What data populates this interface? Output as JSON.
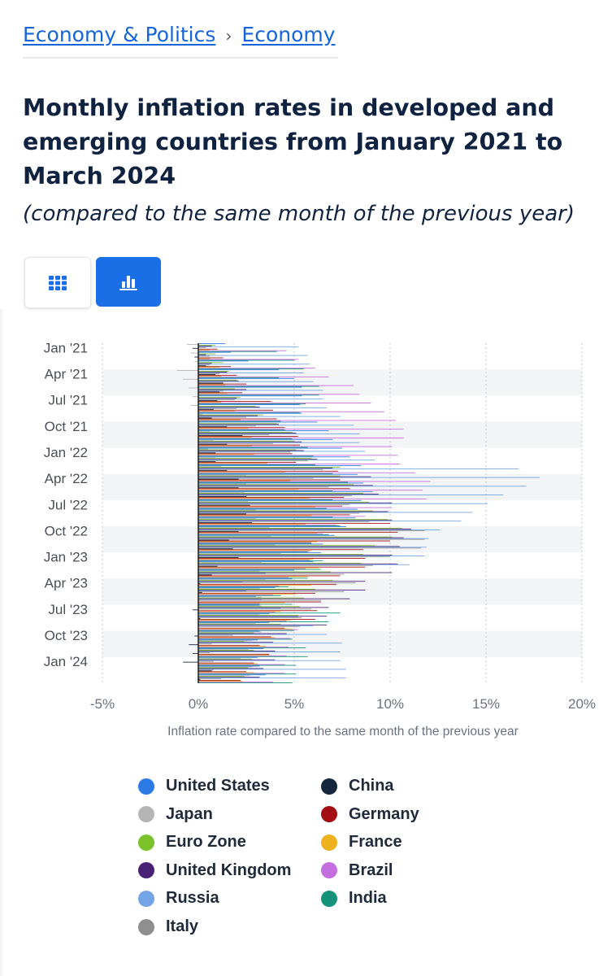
{
  "breadcrumb": {
    "item1": "Economy & Politics",
    "separator": "›",
    "item2": "Economy"
  },
  "title": "Monthly inflation rates in developed and emerging countries from January 2021 to March 2024",
  "subtitle": "(compared to the same month of the previous year)",
  "view_buttons": {
    "table_icon": "grid-icon",
    "chart_icon": "bar-chart-icon",
    "active": "chart"
  },
  "colors": {
    "accent": "#1a6ee6",
    "title": "#0f2240"
  },
  "chart_data": {
    "type": "bar",
    "orientation": "horizontal",
    "xlabel": "Inflation rate compared to the same month of the previous year",
    "xlim": [
      -5,
      20
    ],
    "xticks": [
      "-5%",
      "0%",
      "5%",
      "10%",
      "15%",
      "20%"
    ],
    "xtick_values": [
      -5,
      0,
      5,
      10,
      15,
      20
    ],
    "grid": "vertical dotted",
    "categories": [
      "Jan '21",
      "Feb '21",
      "Mar '21",
      "Apr '21",
      "May '21",
      "Jun '21",
      "Jul '21",
      "Aug '21",
      "Sep '21",
      "Oct '21",
      "Nov '21",
      "Dec '21",
      "Jan '22",
      "Feb '22",
      "Mar '22",
      "Apr '22",
      "May '22",
      "Jun '22",
      "Jul '22",
      "Aug '22",
      "Sep '22",
      "Oct '22",
      "Nov '22",
      "Dec '22",
      "Jan '23",
      "Feb '23",
      "Mar '23",
      "Apr '23",
      "May '23",
      "Jun '23",
      "Jul '23",
      "Aug '23",
      "Sep '23",
      "Oct '23",
      "Nov '23",
      "Dec '23",
      "Jan '24",
      "Feb '24",
      "Mar '24"
    ],
    "category_labels_shown": [
      "Jan '21",
      "Apr '21",
      "Jul '21",
      "Oct '21",
      "Jan '22",
      "Apr '22",
      "Jul '22",
      "Oct '22",
      "Jan '23",
      "Apr '23",
      "Jul '23",
      "Oct '23",
      "Jan '24"
    ],
    "legend_placement": "bottom",
    "series": [
      {
        "name": "United States",
        "color": "#2c7be5",
        "values": [
          1.4,
          1.7,
          2.6,
          4.2,
          5.0,
          5.4,
          5.4,
          5.3,
          5.4,
          6.2,
          6.8,
          7.0,
          7.5,
          7.9,
          8.5,
          8.3,
          8.6,
          9.1,
          8.5,
          8.3,
          8.2,
          7.7,
          7.1,
          6.5,
          6.4,
          6.0,
          5.0,
          4.9,
          4.0,
          3.0,
          3.2,
          3.7,
          3.7,
          3.2,
          3.1,
          3.4,
          3.1,
          3.2,
          3.5
        ]
      },
      {
        "name": "Japan",
        "color": "#b5b5b5",
        "values": [
          -0.6,
          -0.4,
          -0.2,
          -1.1,
          -0.8,
          -0.5,
          -0.3,
          -0.4,
          0.2,
          0.1,
          0.6,
          0.8,
          0.5,
          0.9,
          1.2,
          2.5,
          2.5,
          2.4,
          2.6,
          3.0,
          3.0,
          3.7,
          3.8,
          4.0,
          4.3,
          3.3,
          3.2,
          3.5,
          3.2,
          3.3,
          3.3,
          3.2,
          3.0,
          3.3,
          2.8,
          2.6,
          2.2,
          2.8,
          2.7
        ]
      },
      {
        "name": "Euro Zone",
        "color": "#7cc22b",
        "values": [
          0.9,
          0.9,
          1.3,
          1.6,
          2.0,
          1.9,
          2.2,
          3.0,
          3.4,
          4.1,
          4.9,
          5.0,
          5.1,
          5.9,
          7.4,
          7.4,
          8.1,
          8.6,
          8.9,
          9.1,
          9.9,
          10.6,
          10.1,
          9.2,
          8.6,
          8.5,
          6.9,
          7.0,
          6.1,
          5.5,
          5.3,
          5.2,
          4.3,
          2.9,
          2.4,
          2.9,
          2.8,
          2.6,
          2.4
        ]
      },
      {
        "name": "United Kingdom",
        "color": "#4a2275",
        "values": [
          0.7,
          0.4,
          0.7,
          1.5,
          2.1,
          2.5,
          2.0,
          3.2,
          3.1,
          4.2,
          5.1,
          5.4,
          5.5,
          6.2,
          7.0,
          9.0,
          9.1,
          9.4,
          10.1,
          9.9,
          10.1,
          11.1,
          10.7,
          10.5,
          10.1,
          10.4,
          10.1,
          8.7,
          8.7,
          7.9,
          6.8,
          6.7,
          6.7,
          4.6,
          3.9,
          4.0,
          4.0,
          3.4,
          3.2
        ]
      },
      {
        "name": "Russia",
        "color": "#73a4e6",
        "values": [
          5.2,
          5.7,
          5.8,
          5.5,
          6.0,
          6.5,
          6.5,
          6.7,
          7.4,
          8.1,
          8.4,
          8.4,
          8.7,
          9.2,
          16.7,
          17.8,
          17.1,
          15.9,
          15.1,
          14.3,
          13.7,
          12.6,
          12.0,
          11.9,
          11.8,
          11.0,
          3.5,
          2.3,
          2.5,
          3.3,
          4.3,
          5.2,
          6.0,
          6.7,
          7.5,
          7.4,
          7.4,
          7.7,
          7.7
        ]
      },
      {
        "name": "Italy",
        "color": "#8f8f8f",
        "values": [
          0.4,
          0.6,
          0.6,
          1.1,
          1.3,
          1.3,
          1.9,
          2.0,
          2.5,
          3.0,
          3.7,
          3.9,
          4.8,
          5.7,
          6.5,
          6.0,
          6.8,
          8.0,
          7.9,
          8.4,
          8.9,
          11.8,
          11.8,
          11.6,
          10.0,
          9.1,
          7.6,
          8.2,
          7.6,
          6.4,
          5.9,
          5.4,
          5.3,
          1.8,
          0.7,
          0.6,
          0.8,
          0.8,
          1.2
        ]
      },
      {
        "name": "China",
        "color": "#12273d",
        "values": [
          -0.3,
          -0.2,
          0.4,
          0.9,
          1.3,
          1.1,
          1.0,
          0.8,
          0.7,
          1.5,
          2.3,
          1.5,
          0.9,
          0.9,
          1.5,
          2.1,
          2.1,
          2.5,
          2.7,
          2.5,
          2.8,
          2.1,
          1.6,
          1.8,
          2.1,
          1.0,
          0.7,
          0.1,
          0.2,
          0.0,
          -0.3,
          0.1,
          0.0,
          -0.2,
          -0.5,
          -0.3,
          -0.8,
          0.7,
          0.1
        ]
      },
      {
        "name": "Germany",
        "color": "#a30f12",
        "values": [
          1.0,
          1.3,
          1.7,
          2.0,
          2.5,
          2.3,
          3.8,
          3.9,
          4.1,
          4.5,
          5.2,
          5.3,
          4.9,
          5.1,
          7.3,
          7.4,
          7.9,
          7.6,
          7.5,
          7.9,
          10.0,
          10.4,
          10.0,
          8.6,
          8.7,
          8.7,
          7.4,
          7.2,
          6.1,
          6.4,
          6.2,
          6.1,
          4.5,
          3.8,
          3.2,
          3.7,
          2.9,
          2.5,
          2.2
        ]
      },
      {
        "name": "France",
        "color": "#efb11e",
        "values": [
          0.6,
          0.6,
          1.1,
          1.2,
          1.4,
          1.5,
          1.2,
          1.9,
          2.2,
          2.6,
          2.8,
          2.8,
          2.9,
          3.6,
          4.5,
          4.8,
          5.2,
          5.8,
          6.1,
          5.9,
          5.6,
          6.2,
          6.2,
          5.9,
          6.0,
          6.3,
          5.7,
          5.9,
          5.1,
          4.5,
          4.3,
          4.8,
          4.9,
          4.0,
          3.5,
          3.7,
          3.1,
          2.9,
          2.3
        ]
      },
      {
        "name": "Brazil",
        "color": "#c56ee0",
        "values": [
          4.6,
          5.2,
          6.1,
          6.8,
          8.1,
          8.4,
          9.0,
          9.7,
          10.3,
          10.7,
          10.7,
          10.1,
          10.4,
          10.5,
          11.3,
          12.1,
          11.7,
          11.9,
          10.1,
          8.7,
          7.2,
          6.5,
          5.9,
          5.8,
          5.8,
          5.6,
          4.7,
          4.2,
          3.9,
          3.2,
          4.0,
          4.6,
          5.2,
          4.8,
          4.7,
          4.6,
          4.5,
          4.5,
          3.9
        ]
      },
      {
        "name": "India",
        "color": "#14927a",
        "values": [
          4.1,
          5.0,
          5.5,
          4.2,
          6.3,
          6.3,
          5.6,
          5.3,
          4.3,
          4.5,
          4.9,
          5.7,
          6.0,
          6.1,
          7.0,
          7.8,
          7.0,
          7.0,
          6.7,
          7.0,
          7.4,
          6.8,
          5.9,
          5.7,
          6.5,
          6.4,
          5.7,
          4.7,
          4.3,
          4.9,
          7.4,
          6.8,
          5.0,
          4.9,
          5.6,
          5.7,
          5.1,
          5.1,
          4.9
        ]
      }
    ]
  }
}
